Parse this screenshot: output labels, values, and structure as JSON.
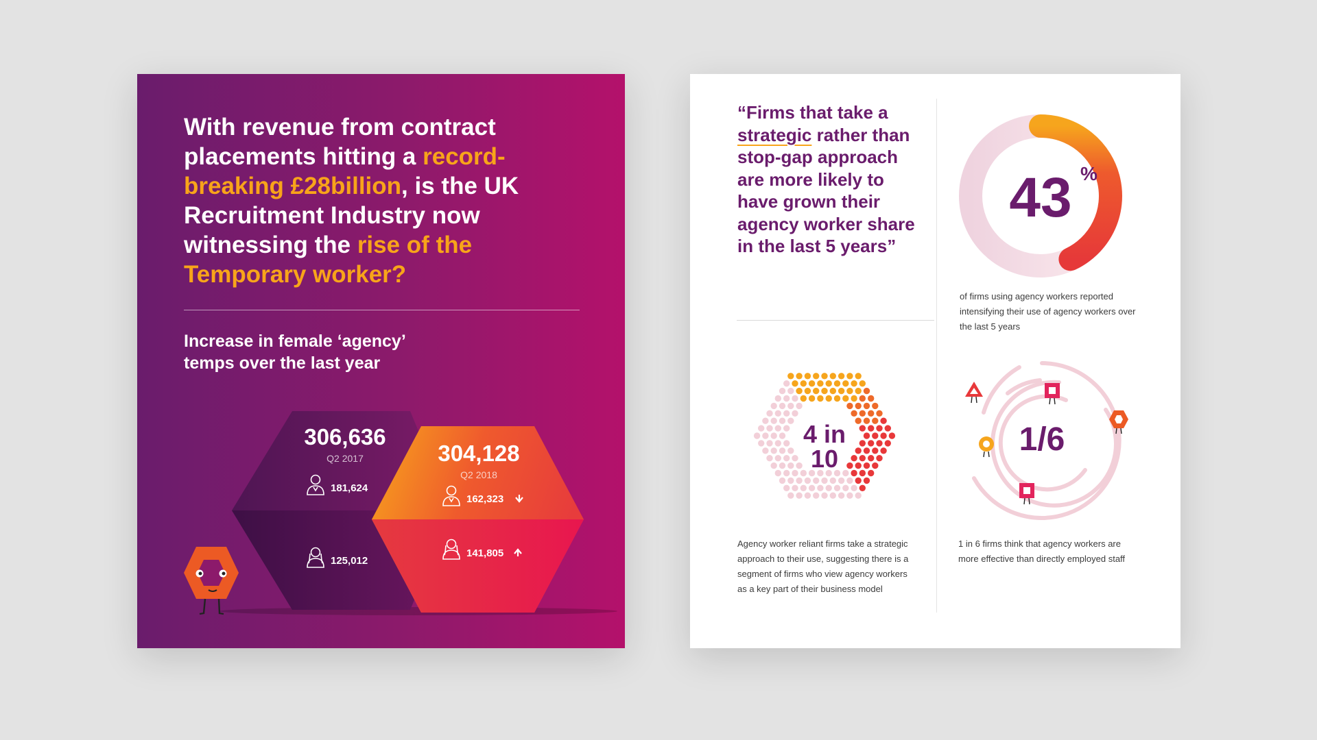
{
  "left_panel": {
    "headline": {
      "part1": "With revenue from contract placements hitting a ",
      "highlight1": "record-breaking £28billion",
      "part2": ", is the UK Recruitment Industry now witnessing the ",
      "highlight2": "rise of the Temporary worker?"
    },
    "subhead": "Increase in female ‘agency’ temps over the last year",
    "stats": {
      "q2_2017": {
        "total": "306,636",
        "period": "Q2 2017",
        "male": "181,624",
        "female": "125,012"
      },
      "q2_2018": {
        "total": "304,128",
        "period": "Q2 2018",
        "male": "162,323",
        "female": "141,805"
      }
    }
  },
  "right_panel": {
    "quote": {
      "open": "“Firms that take a ",
      "underlined": "strategic",
      "rest": " rather than stop-gap approach are more likely to have grown their agency worker share in the last 5 years”"
    },
    "percent": {
      "value": "43",
      "unit": "%",
      "level": 0.43,
      "caption": "of firms using agency workers reported intensifying their use of agency workers over the last 5 years"
    },
    "ratio_hex": {
      "line1": "4 in",
      "line2": "10",
      "caption": "Agency worker reliant firms take a strategic approach to their use, suggesting there is a segment of firms who view agency workers as a key part of their business model"
    },
    "ratio_rings": {
      "value": "1/6",
      "caption": "1 in 6 firms think that agency workers are more effective than directly employed staff"
    }
  },
  "colors": {
    "purple": "#6a1c6c",
    "magenta": "#b4116b",
    "orange": "#f8a41a",
    "red": "#e8383a",
    "pink": "#f2cfd8"
  }
}
